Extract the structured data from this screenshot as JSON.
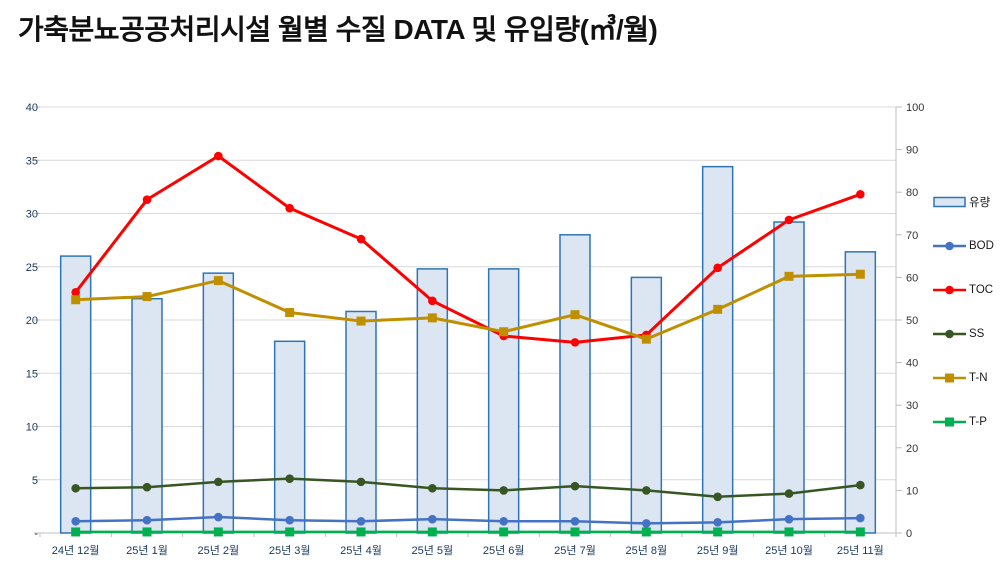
{
  "title": "가축분뇨공공처리시설 월별 수질 DATA 및 유입량(㎥/월)",
  "legend": {
    "items": [
      {
        "label": "유량",
        "type": "bar",
        "fill": "#dce6f2",
        "border": "#2e75b6"
      },
      {
        "label": "BOD",
        "type": "line",
        "marker": "circle",
        "color": "#4472c4"
      },
      {
        "label": "TOC",
        "type": "line",
        "marker": "circle",
        "color": "#ff0000"
      },
      {
        "label": "SS",
        "type": "line",
        "marker": "circle",
        "color": "#375623"
      },
      {
        "label": "T-N",
        "type": "line",
        "marker": "square",
        "color": "#bf8f00"
      },
      {
        "label": "T-P",
        "type": "line",
        "marker": "square",
        "color": "#00b050"
      }
    ]
  },
  "chart_data": {
    "type": "combo-bar-line",
    "title": "가축분뇨공공처리시설 월별 수질 DATA 및 유입량(㎥/월)",
    "grid": true,
    "legend_position": "right",
    "categories": [
      "24년 12월",
      "25년 1월",
      "25년 2월",
      "25년 3월",
      "25년 4월",
      "25년 5월",
      "25년 6월",
      "25년 7월",
      "25년 8월",
      "25년 9월",
      "25년 10월",
      "25년 11월"
    ],
    "bar_series": {
      "name": "유량",
      "axis": "right",
      "fill": "#dce6f2",
      "border": "#2e75b6",
      "values": [
        65,
        55,
        61,
        45,
        52,
        62,
        62,
        70,
        60,
        86,
        73,
        66
      ]
    },
    "line_series": [
      {
        "name": "BOD",
        "axis": "left",
        "marker": "circle",
        "color": "#4472c4",
        "width": 2.5,
        "values": [
          1.1,
          1.2,
          1.5,
          1.2,
          1.1,
          1.3,
          1.1,
          1.1,
          0.9,
          1.0,
          1.3,
          1.4
        ]
      },
      {
        "name": "TOC",
        "axis": "left",
        "marker": "circle",
        "color": "#ff0000",
        "width": 3,
        "values": [
          22.6,
          31.3,
          35.4,
          30.5,
          27.6,
          21.8,
          18.5,
          17.9,
          18.6,
          24.9,
          29.4,
          31.8
        ]
      },
      {
        "name": "SS",
        "axis": "left",
        "marker": "circle",
        "color": "#375623",
        "width": 2.5,
        "values": [
          4.2,
          4.3,
          4.8,
          5.1,
          4.8,
          4.2,
          4.0,
          4.4,
          4.0,
          3.4,
          3.7,
          4.5
        ]
      },
      {
        "name": "T-N",
        "axis": "left",
        "marker": "square",
        "color": "#bf8f00",
        "width": 3,
        "values": [
          21.9,
          22.2,
          23.7,
          20.7,
          19.9,
          20.2,
          18.9,
          20.5,
          18.2,
          21.0,
          24.1,
          24.3
        ]
      },
      {
        "name": "T-P",
        "axis": "left",
        "marker": "square",
        "color": "#00b050",
        "width": 2.5,
        "values": [
          0.1,
          0.1,
          0.1,
          0.1,
          0.1,
          0.1,
          0.1,
          0.1,
          0.1,
          0.1,
          0.1,
          0.1
        ]
      }
    ],
    "left_axis": {
      "min": 0,
      "max": 40,
      "step": 5,
      "labels": [
        "-",
        "5",
        "10",
        "15",
        "20",
        "25",
        "30",
        "35",
        "40"
      ]
    },
    "right_axis": {
      "min": 0,
      "max": 100,
      "step": 10,
      "labels": [
        "0",
        "10",
        "20",
        "30",
        "40",
        "50",
        "60",
        "70",
        "80",
        "90",
        "100"
      ]
    }
  }
}
